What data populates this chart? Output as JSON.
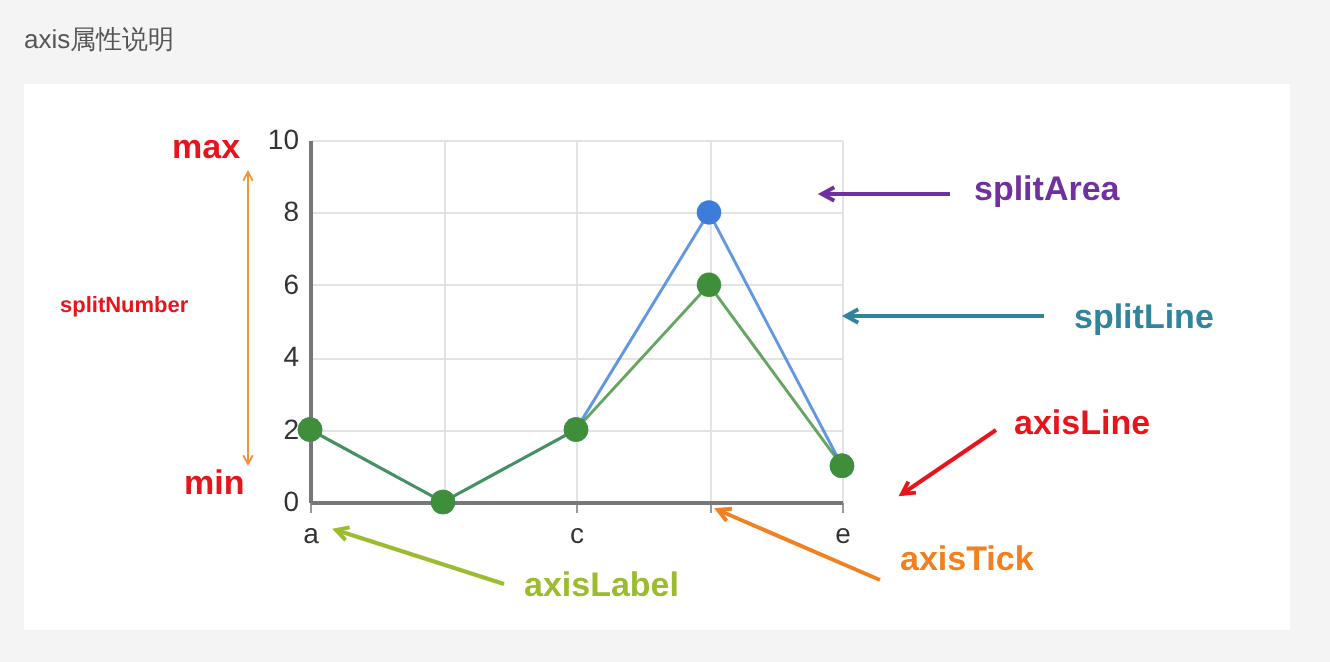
{
  "chart_data": {
    "type": "line",
    "title": "axis属性说明",
    "categories": [
      "a",
      null,
      "c",
      null,
      "e"
    ],
    "series": [
      {
        "color": "#3b7dd8",
        "values": [
          2,
          0,
          2,
          8,
          1
        ]
      },
      {
        "color": "#3f8f3a",
        "values": [
          2,
          0,
          2,
          6,
          1
        ]
      }
    ],
    "ylim": [
      0,
      10
    ],
    "yticks": [
      0,
      2,
      4,
      6,
      8,
      10
    ],
    "grid": true,
    "marker": "circle",
    "annotations": [
      "max",
      "min",
      "splitNumber",
      "splitArea",
      "splitLine",
      "axisLine",
      "axisLabel",
      "axisTick"
    ]
  }
}
